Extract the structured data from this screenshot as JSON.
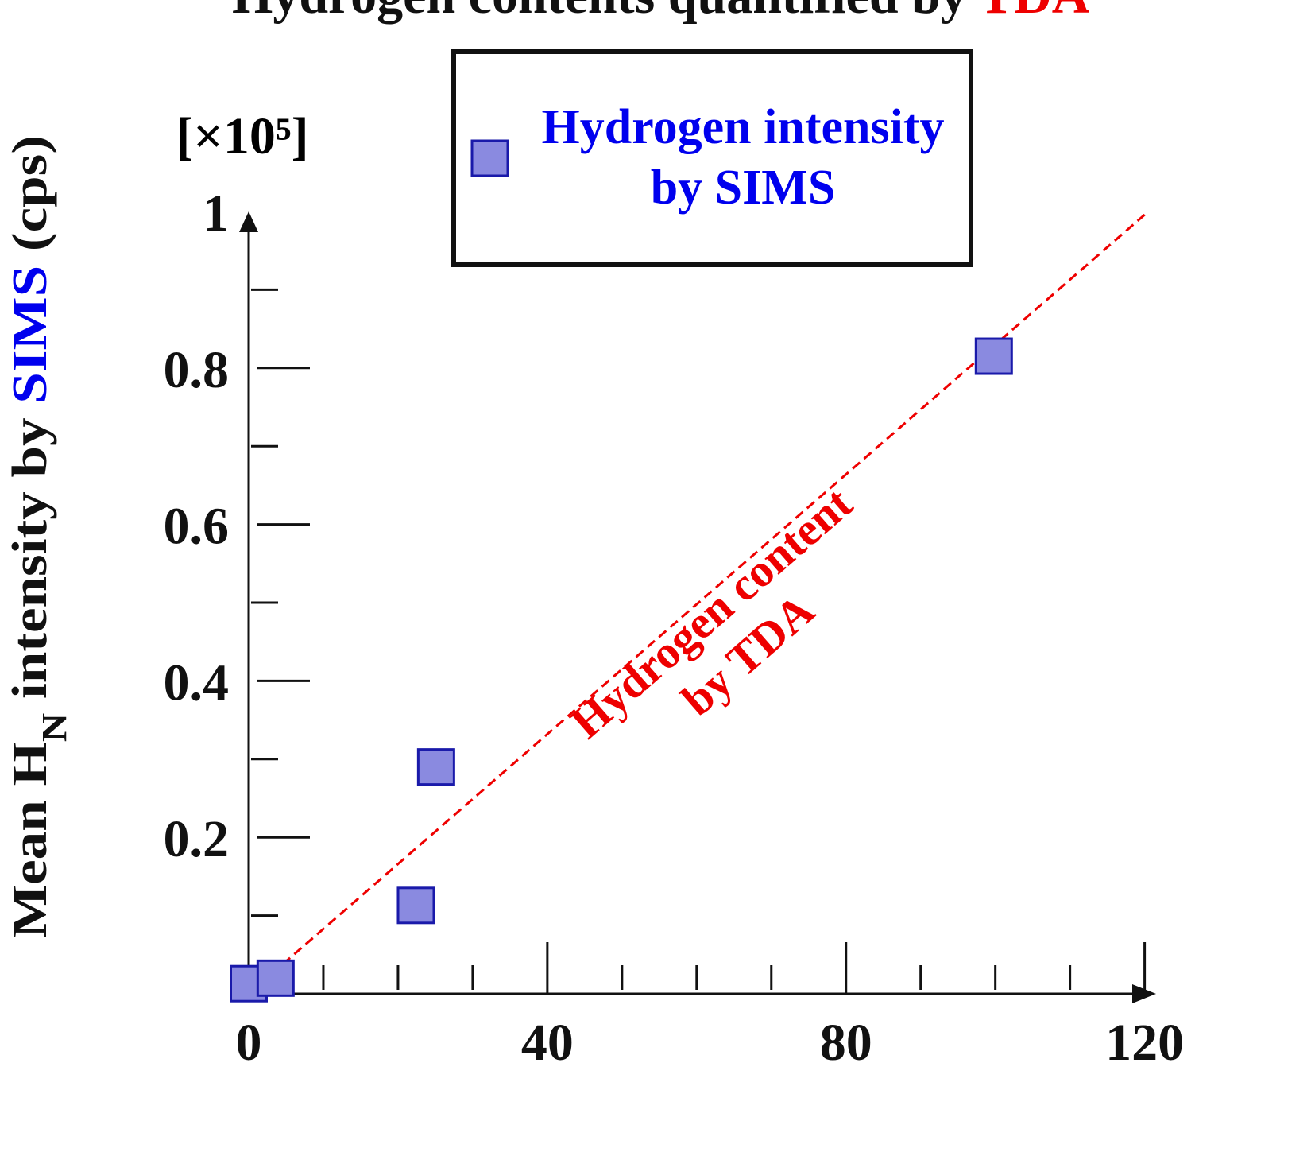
{
  "chart_data": {
    "type": "scatter",
    "title": [
      "Hydrogen contents quantified by ",
      "TDA"
    ],
    "title_colors": [
      "#111111",
      "#ee0000"
    ],
    "ylabel": [
      "Mean H",
      "N",
      " intensity by ",
      "SIMS",
      " (cps)"
    ],
    "ylabel_colors": [
      "#111111",
      "#111111",
      "#111111",
      "#0000ee",
      "#111111"
    ],
    "y_unit_label": "[×10⁵]",
    "xlim": [
      0,
      121
    ],
    "ylim": [
      0,
      1
    ],
    "xticks": [
      0,
      40,
      80,
      120
    ],
    "yticks": [
      0.2,
      0.4,
      0.6,
      0.8,
      1
    ],
    "xminorticks": [
      10,
      20,
      30,
      50,
      60,
      70,
      90,
      100,
      110
    ],
    "yminorticks": [
      0.1,
      0.3,
      0.5,
      0.7,
      0.9
    ],
    "series": [
      {
        "name": "Hydrogen intensity by SIMS",
        "color": "#8a8ae0",
        "edge_color": "#1a1aaa",
        "x": [
          0,
          3.6,
          22.4,
          25.1,
          99.8
        ],
        "values": [
          0.013,
          0.02,
          0.113,
          0.29,
          0.815
        ]
      }
    ],
    "reference_line": {
      "name": "Hydrogen content by TDA",
      "color": "#ee0000",
      "x": [
        0,
        120.5
      ],
      "values": [
        0,
        1
      ]
    }
  }
}
